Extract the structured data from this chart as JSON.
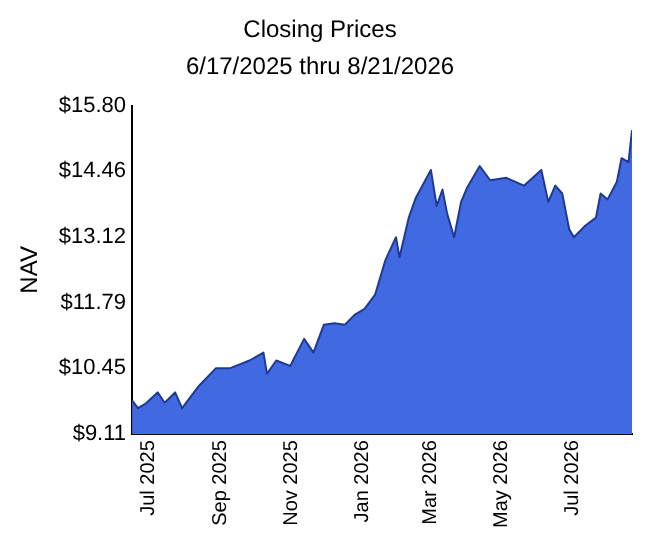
{
  "chart_data": {
    "type": "area",
    "title": "Closing Prices",
    "subtitle": "6/17/2025 thru 8/21/2026",
    "ylabel": "NAV",
    "x": [
      "2025-06-17",
      "2025-06-22",
      "2025-06-28",
      "2025-07-09",
      "2025-07-15",
      "2025-07-24",
      "2025-07-30",
      "2025-08-13",
      "2025-08-28",
      "2025-09-09",
      "2025-09-26",
      "2025-10-08",
      "2025-10-11",
      "2025-10-19",
      "2025-10-31",
      "2025-11-12",
      "2025-11-20",
      "2025-11-29",
      "2025-12-08",
      "2025-12-17",
      "2025-12-26",
      "2026-01-03",
      "2026-01-12",
      "2026-01-21",
      "2026-01-30",
      "2026-02-02",
      "2026-02-10",
      "2026-02-16",
      "2026-03-01",
      "2026-03-06",
      "2026-03-11",
      "2026-03-15",
      "2026-03-21",
      "2026-03-27",
      "2026-04-01",
      "2026-04-12",
      "2026-04-21",
      "2026-05-05",
      "2026-05-20",
      "2026-06-04",
      "2026-06-10",
      "2026-06-16",
      "2026-06-22",
      "2026-06-28",
      "2026-07-02",
      "2026-07-12",
      "2026-07-21",
      "2026-07-25",
      "2026-07-31",
      "2026-08-08",
      "2026-08-12",
      "2026-08-18",
      "2026-08-21"
    ],
    "series": [
      {
        "color": "#4169e1",
        "values": [
          9.8,
          9.64,
          9.72,
          9.96,
          9.75,
          9.96,
          9.64,
          10.08,
          10.45,
          10.45,
          10.61,
          10.77,
          10.34,
          10.61,
          10.5,
          11.05,
          10.77,
          11.34,
          11.37,
          11.34,
          11.55,
          11.66,
          11.95,
          12.66,
          13.12,
          12.71,
          13.52,
          13.92,
          14.49,
          13.76,
          14.09,
          13.6,
          13.12,
          13.84,
          14.12,
          14.57,
          14.28,
          14.33,
          14.17,
          14.49,
          13.84,
          14.17,
          14.01,
          13.28,
          13.12,
          13.36,
          13.52,
          14.01,
          13.89,
          14.25,
          14.73,
          14.65,
          15.3
        ]
      }
    ],
    "xlim": [
      "2025-06-17",
      "2026-08-21"
    ],
    "xticks": [
      {
        "value": "2025-07-01",
        "label": "Jul 2025"
      },
      {
        "value": "2025-09-01",
        "label": "Sep 2025"
      },
      {
        "value": "2025-11-01",
        "label": "Nov 2025"
      },
      {
        "value": "2026-01-01",
        "label": "Jan 2026"
      },
      {
        "value": "2026-03-01",
        "label": "Mar 2026"
      },
      {
        "value": "2026-05-01",
        "label": "May 2026"
      },
      {
        "value": "2026-07-01",
        "label": "Jul 2026"
      }
    ],
    "ylim": [
      9.11,
      15.8
    ],
    "yticks": [
      {
        "value": 9.11,
        "label": "$9.11"
      },
      {
        "value": 10.45,
        "label": "$10.45"
      },
      {
        "value": 11.79,
        "label": "$11.79"
      },
      {
        "value": 13.12,
        "label": "$13.12"
      },
      {
        "value": 14.46,
        "label": "$14.46"
      },
      {
        "value": 15.8,
        "label": "$15.80"
      }
    ],
    "grid": false,
    "legend": false
  }
}
